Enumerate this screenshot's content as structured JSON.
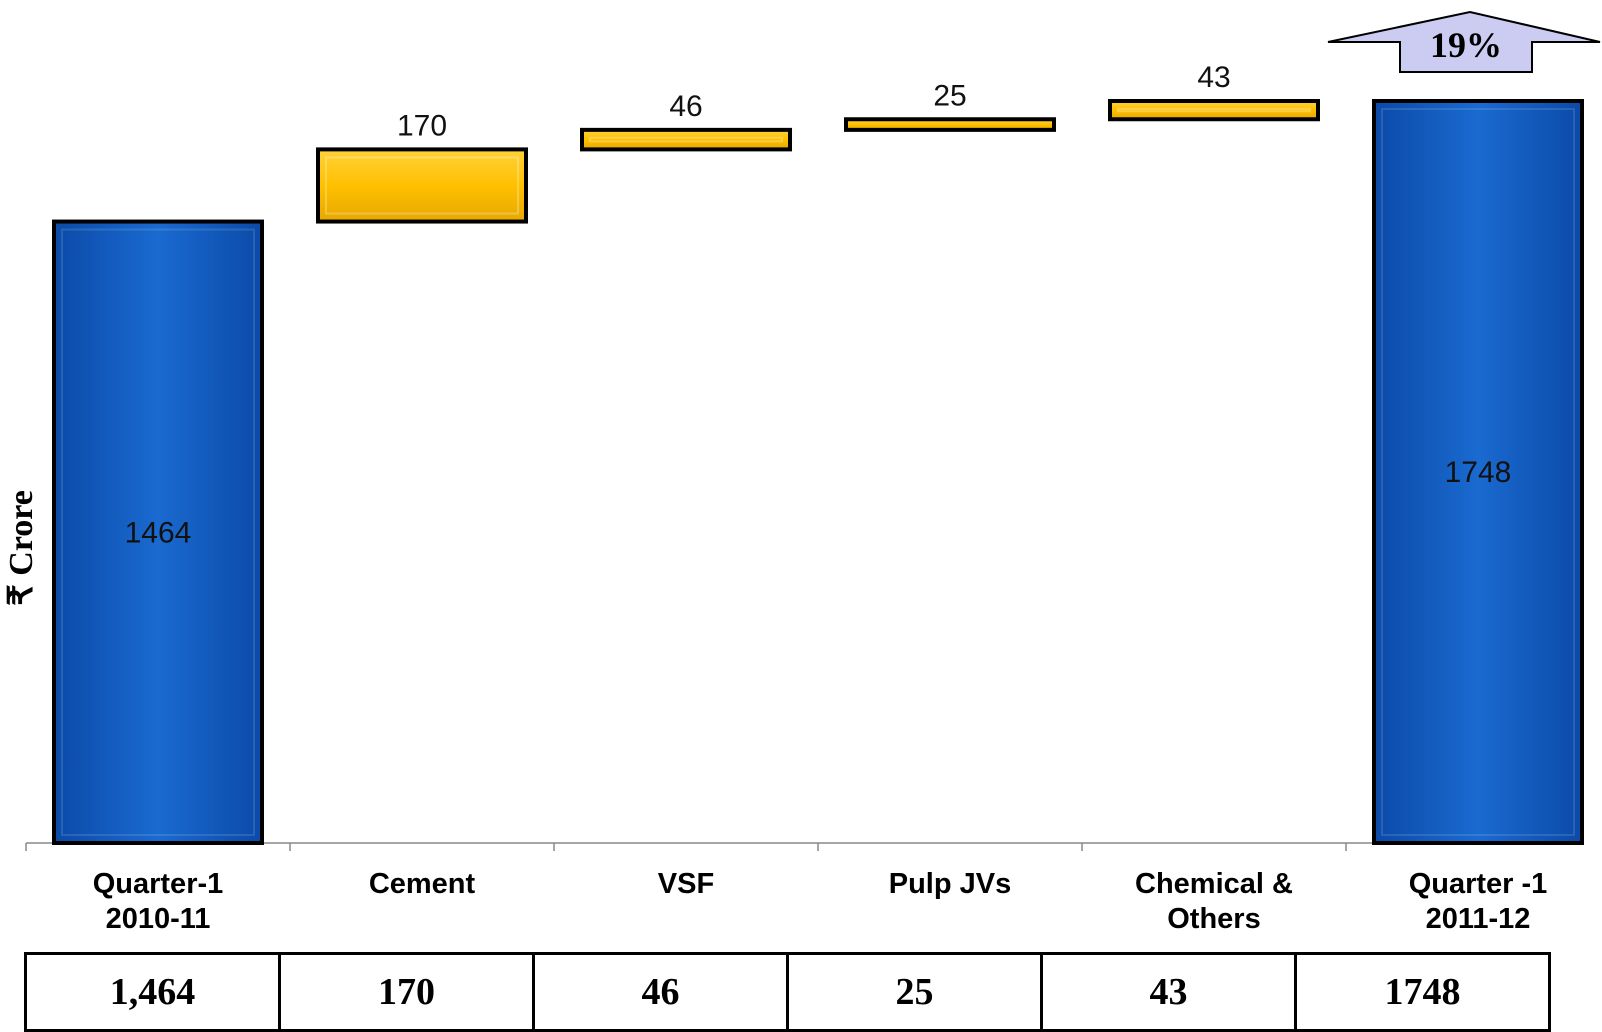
{
  "chart_data": {
    "type": "waterfall",
    "ylabel": "₹ Crore",
    "categories": [
      "Quarter-1\n2010-11",
      "Cement",
      "VSF",
      "Pulp JVs",
      "Chemical &\nOthers",
      "Quarter -1\n2011-12"
    ],
    "values": [
      1464,
      170,
      46,
      25,
      43,
      1748
    ],
    "value_labels": [
      "1464",
      "170",
      "46",
      "25",
      "43",
      "1748"
    ],
    "bar_kinds": [
      "total",
      "increment",
      "increment",
      "increment",
      "increment",
      "total"
    ],
    "growth_label": "19%",
    "ylim": [
      0,
      1748
    ],
    "colors": {
      "total": "#1565c0",
      "increment": "#ffc000",
      "arrow": "#ccccf2"
    }
  },
  "table": {
    "cells": [
      "1,464",
      "170",
      "46",
      "25",
      "43",
      "1748"
    ]
  }
}
